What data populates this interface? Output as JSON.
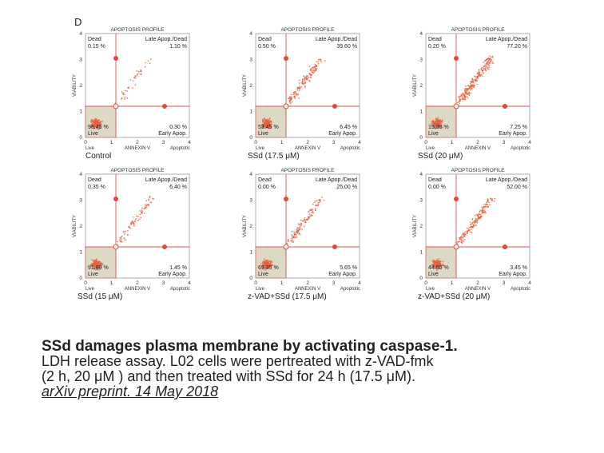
{
  "panel_letter": "D",
  "profile_title": "APOPTOSIS PROFILE",
  "axis": {
    "y_title": "VIABILITY",
    "x_title": "ANNEXIN V",
    "x_left_label": "Live",
    "x_right_label": "Apoptotic",
    "ticks": [
      "0",
      "1",
      "2",
      "3",
      "4"
    ]
  },
  "quadrant_names": {
    "dead": "Dead",
    "late": "Late Apop./Dead",
    "live": "Live",
    "early": "Early Apop."
  },
  "panels": [
    {
      "label": "Control",
      "dead": "0.15 %",
      "late": "1.10 %",
      "live": "98.45 %",
      "early": "0.30 %"
    },
    {
      "label": "SSd (17.5 μM)",
      "dead": "0.50 %",
      "late": "39.60 %",
      "live": "53.45 %",
      "early": "6.45 %"
    },
    {
      "label": "SSd (20 μM)",
      "dead": "0.20 %",
      "late": "77.20 %",
      "live": "15.35 %",
      "early": "7.25 %"
    },
    {
      "label": "SSd (15 μM)",
      "dead": "0.35 %",
      "late": "6.40 %",
      "live": "91.80 %",
      "early": "1.45 %"
    },
    {
      "label": "z-VAD+SSd (17.5 μM)",
      "dead": "0.00 %",
      "late": "25.00 %",
      "live": "69.35 %",
      "early": "5.65 %"
    },
    {
      "label": "z-VAD+SSd (20 μM)",
      "dead": "0.00 %",
      "late": "52.00 %",
      "live": "44.55 %",
      "early": "3.45 %"
    }
  ],
  "colors": {
    "marker": "#e8472e",
    "live_box": "#ddd9c4",
    "dots": "#e9623f",
    "gate": "#d9534f"
  },
  "caption": {
    "title": "SSd damages plasma membrane by activating caspase-1.",
    "line1": "LDH release assay. L02 cells were pertreated with z-VAD-fmk",
    "line2": "(2 h, 20 μM ) and then treated with SSd for 24 h (17.5 μM).",
    "citation": "arXiv preprint. 14 May 2018"
  }
}
